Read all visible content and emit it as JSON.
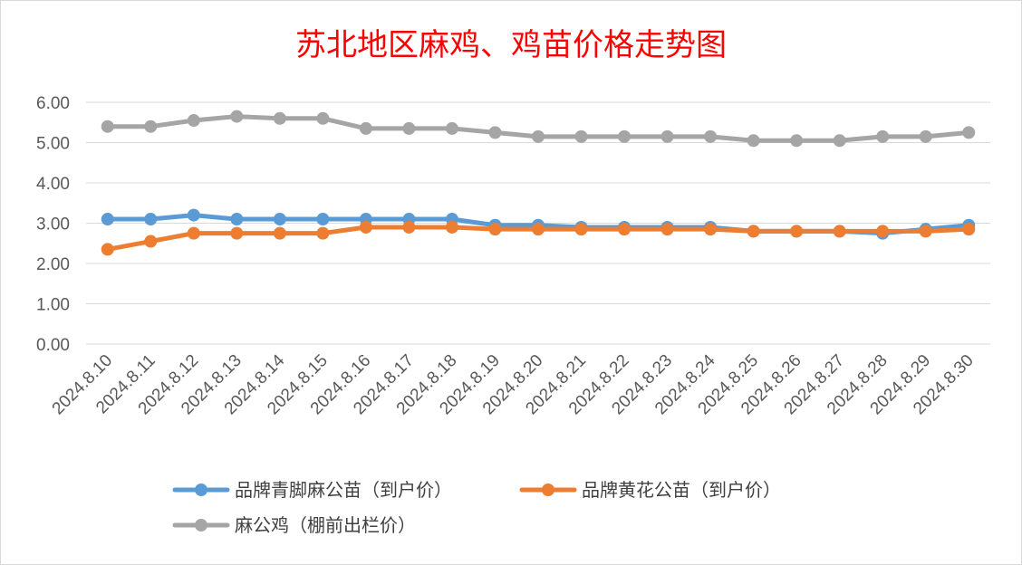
{
  "chart_data": {
    "type": "line",
    "title": "苏北地区麻鸡、鸡苗价格走势图",
    "xlabel": "",
    "ylabel": "",
    "ylim": [
      0,
      6
    ],
    "yticks": [
      "0.00",
      "1.00",
      "2.00",
      "3.00",
      "4.00",
      "5.00",
      "6.00"
    ],
    "grid": true,
    "legend_position": "bottom",
    "categories": [
      "2024.8.10",
      "2024.8.11",
      "2024.8.12",
      "2024.8.13",
      "2024.8.14",
      "2024.8.15",
      "2024.8.16",
      "2024.8.17",
      "2024.8.18",
      "2024.8.19",
      "2024.8.20",
      "2024.8.21",
      "2024.8.22",
      "2024.8.23",
      "2024.8.24",
      "2024.8.25",
      "2024.8.26",
      "2024.8.27",
      "2024.8.28",
      "2024.8.29",
      "2024.8.30"
    ],
    "series": [
      {
        "name": "品牌青脚麻公苗（到户价）",
        "color": "#5b9bd5",
        "values": [
          3.1,
          3.1,
          3.2,
          3.1,
          3.1,
          3.1,
          3.1,
          3.1,
          3.1,
          2.95,
          2.95,
          2.9,
          2.9,
          2.9,
          2.9,
          2.8,
          2.8,
          2.8,
          2.75,
          2.85,
          2.95
        ]
      },
      {
        "name": "品牌黄花公苗（到户价）",
        "color": "#ed7d31",
        "values": [
          2.35,
          2.55,
          2.75,
          2.75,
          2.75,
          2.75,
          2.9,
          2.9,
          2.9,
          2.85,
          2.85,
          2.85,
          2.85,
          2.85,
          2.85,
          2.8,
          2.8,
          2.8,
          2.8,
          2.8,
          2.85
        ]
      },
      {
        "name": "麻公鸡（棚前出栏价）",
        "color": "#a5a5a5",
        "values": [
          5.4,
          5.4,
          5.55,
          5.65,
          5.6,
          5.6,
          5.35,
          5.35,
          5.35,
          5.25,
          5.15,
          5.15,
          5.15,
          5.15,
          5.15,
          5.05,
          5.05,
          5.05,
          5.15,
          5.15,
          5.25
        ]
      }
    ]
  }
}
